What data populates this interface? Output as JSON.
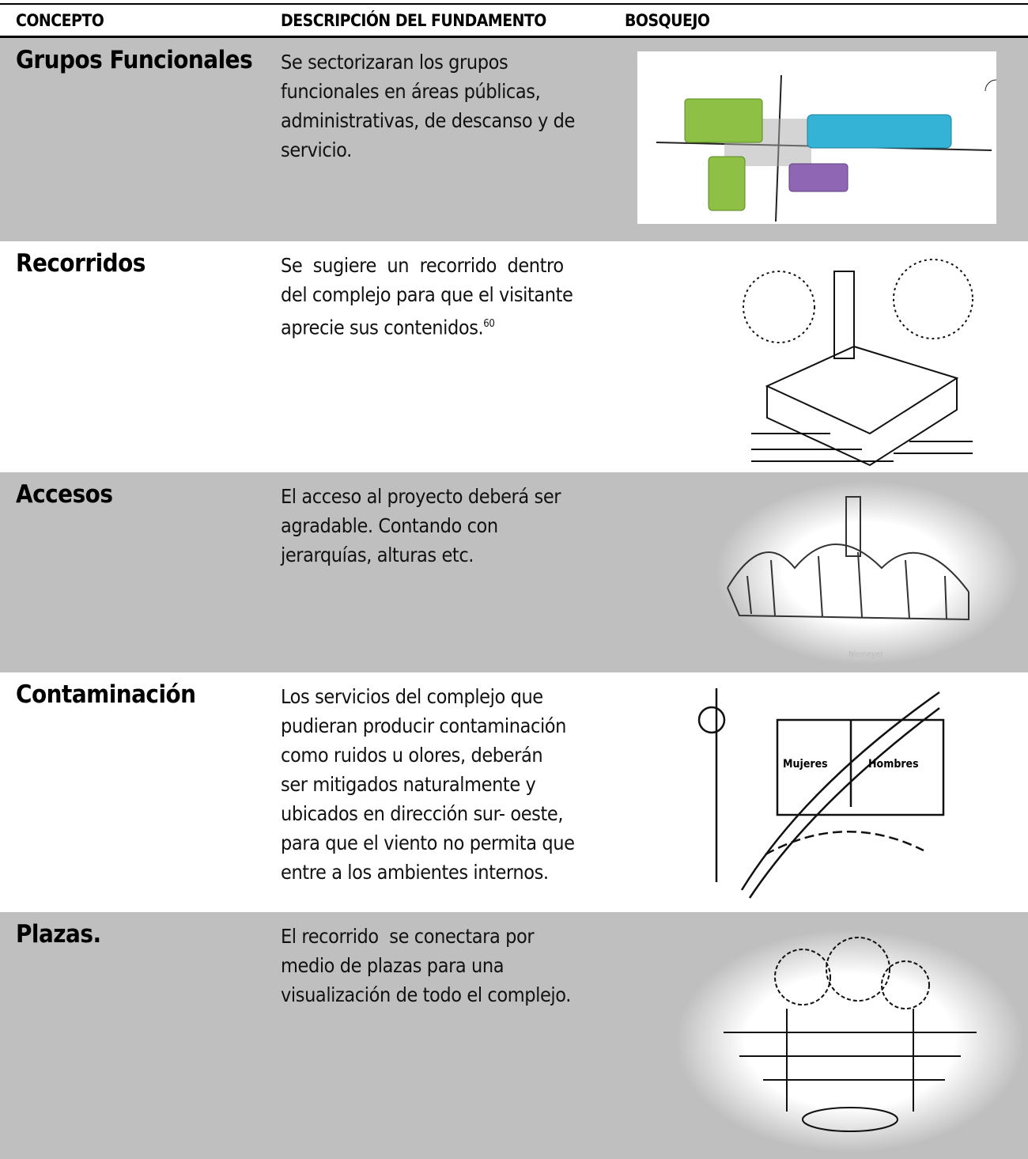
{
  "table": {
    "headers": [
      "CONCEPTO",
      "DESCRIPCIÓN DEL FUNDAMENTO",
      "BOSQUEJO"
    ],
    "rows": [
      {
        "concept": "Grupos Funcionales",
        "description": [
          "Se sectorizaran los grupos",
          "funcionales en áreas públicas,",
          "administrativas, de descanso y de",
          "servicio."
        ]
      },
      {
        "concept": "Recorridos",
        "description": [
          "Se  sugiere  un  recorrido  dentro",
          "del complejo para que el visitante",
          "aprecie sus contenidos."
        ],
        "footnote": "60"
      },
      {
        "concept": "Accesos",
        "description": [
          "El acceso al proyecto deberá ser",
          "agradable. Contando con",
          "jerarquías, alturas etc."
        ],
        "sketch_label": "Niemeyer"
      },
      {
        "concept": "Contaminación",
        "description": [
          "Los servicios del complejo que",
          "pudieran producir contaminación",
          "como ruidos u olores, deberán",
          "ser mitigados naturalmente y",
          "ubicados en dirección sur- oeste,",
          "para que el viento no permita que",
          "entre a los ambientes internos."
        ],
        "sketch_labels": [
          "Mujeres",
          "Hombres"
        ]
      },
      {
        "concept": "Plazas.",
        "description": [
          "El recorrido  se conectara por",
          "medio de plazas para una",
          "visualización de todo el complejo."
        ]
      }
    ]
  }
}
